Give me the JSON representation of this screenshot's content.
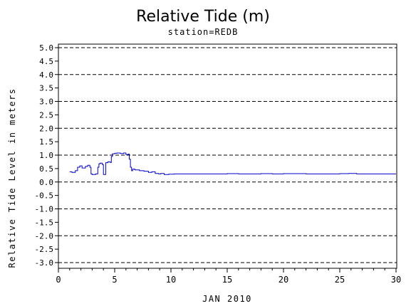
{
  "chart_data": {
    "type": "line",
    "title": "Relative Tide (m)",
    "subtitle": "station=REDB",
    "xlabel": "JAN 2010",
    "ylabel": "Relative Tide Level in meters",
    "xlim": [
      0,
      30
    ],
    "ylim": [
      -3.0,
      5.0
    ],
    "x_ticks": [
      "0",
      "5",
      "10",
      "15",
      "20",
      "25",
      "30"
    ],
    "y_ticks": [
      "5.0",
      "4.5",
      "4.0",
      "3.5",
      "3.0",
      "2.5",
      "2.0",
      "1.5",
      "1.0",
      "0.5",
      "0.0",
      "-0.5",
      "-1.0",
      "-1.5",
      "-2.0",
      "-2.5",
      "-3.0"
    ],
    "grid": "dashed horizontal lines at each integer y value",
    "series": [
      {
        "color": "#0000cc",
        "x": [
          1.0,
          1.2,
          1.5,
          1.7,
          1.9,
          2.1,
          2.4,
          2.6,
          2.8,
          2.9,
          3.0,
          3.3,
          3.5,
          3.6,
          3.7,
          3.9,
          4.0,
          4.1,
          4.2,
          4.4,
          4.6,
          4.7,
          4.8,
          5.0,
          5.2,
          5.5,
          5.8,
          6.0,
          6.2,
          6.3,
          6.4,
          6.5,
          6.6,
          6.8,
          7.2,
          7.6,
          8.0,
          8.3,
          8.6,
          8.9,
          9.1,
          9.4,
          9.8,
          10.3,
          11.0,
          13.0,
          15.0,
          16.0,
          18.0,
          19.0,
          20.0,
          22.0,
          24.0,
          25.0,
          25.8,
          26.5,
          28.0,
          30.0
        ],
        "values": [
          0.38,
          0.36,
          0.42,
          0.55,
          0.6,
          0.52,
          0.58,
          0.62,
          0.55,
          0.3,
          0.28,
          0.3,
          0.55,
          0.68,
          0.7,
          0.65,
          0.28,
          0.28,
          0.72,
          0.75,
          0.73,
          0.95,
          1.05,
          1.07,
          1.08,
          1.06,
          1.08,
          1.02,
          1.04,
          0.85,
          0.55,
          0.42,
          0.48,
          0.45,
          0.42,
          0.4,
          0.36,
          0.38,
          0.32,
          0.3,
          0.32,
          0.28,
          0.29,
          0.3,
          0.3,
          0.3,
          0.31,
          0.3,
          0.31,
          0.3,
          0.31,
          0.3,
          0.3,
          0.31,
          0.32,
          0.3,
          0.3,
          0.3
        ]
      }
    ]
  }
}
